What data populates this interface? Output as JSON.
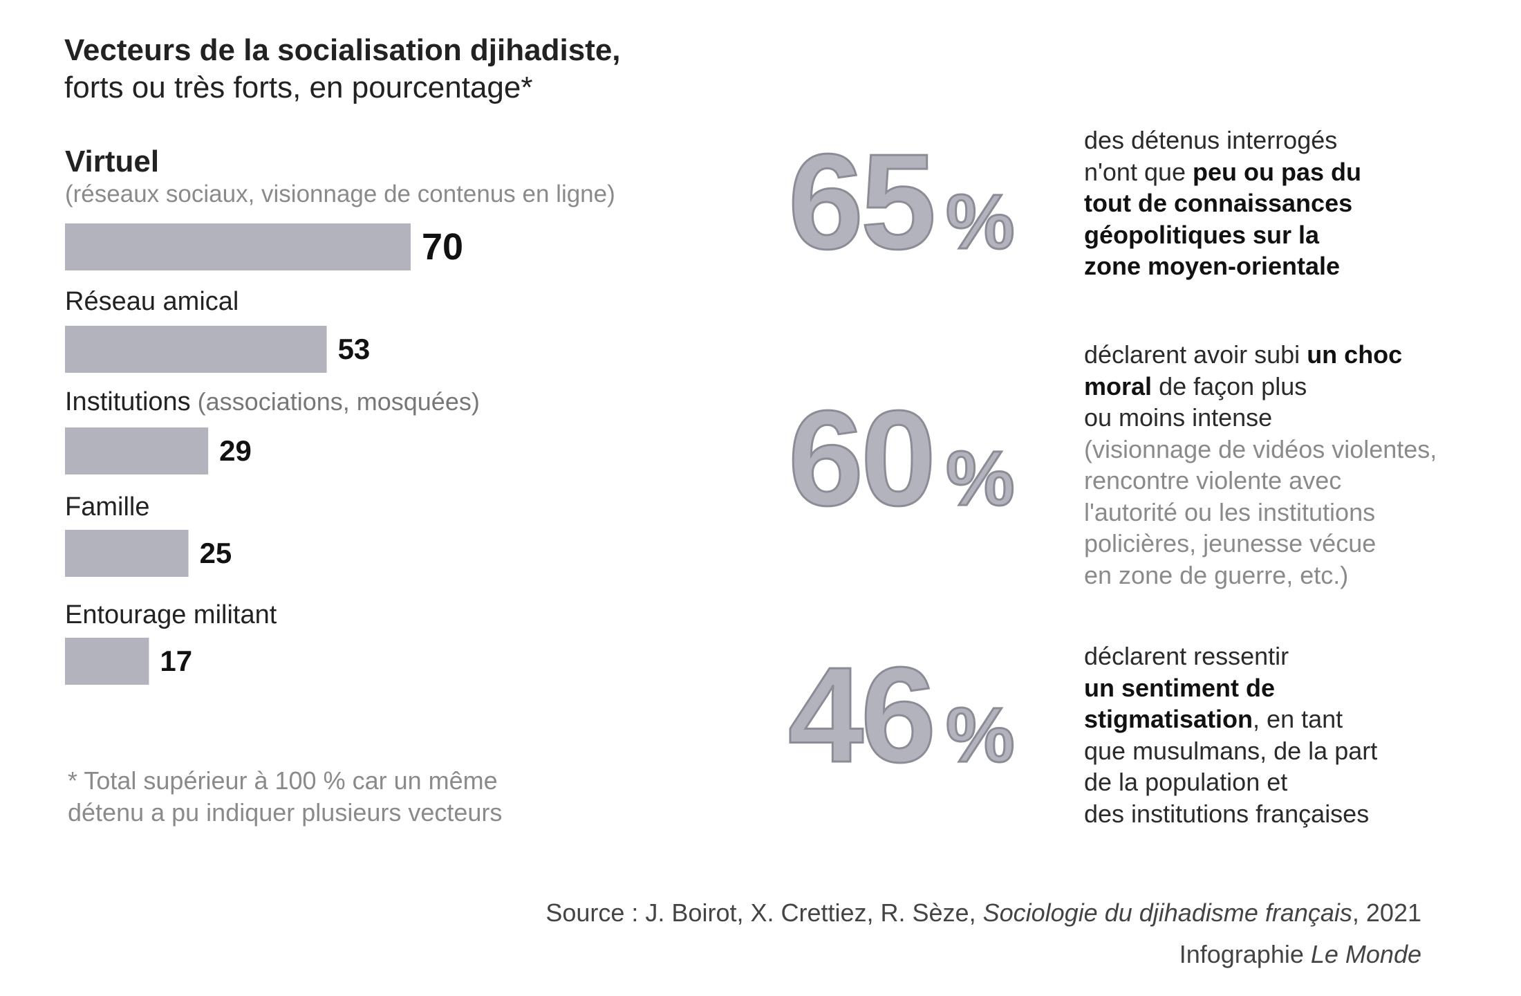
{
  "title": {
    "line1": "Vecteurs de la socialisation djihadiste,",
    "line2": "forts ou très forts, en pourcentage*"
  },
  "chart_data": {
    "type": "bar",
    "orientation": "horizontal",
    "categories": [
      "Virtuel",
      "Réseau amical",
      "Institutions",
      "Famille",
      "Entourage militant"
    ],
    "category_notes": [
      "(réseaux sociaux, visionnage de contenus en ligne)",
      "",
      "(associations, mosquées)",
      "",
      ""
    ],
    "values": [
      70,
      53,
      29,
      25,
      17
    ],
    "bar_color": "#b3b3bd",
    "xlim": [
      0,
      70
    ]
  },
  "footnote": {
    "line1": "* Total supérieur à 100 % car un même",
    "line2": "détenu a pu indiquer plusieurs vecteurs"
  },
  "stats": [
    {
      "number": "65",
      "unit": "%",
      "text_1": "des détenus interrogés",
      "text_2": "n'ont que",
      "bold_1": "peu ou pas du",
      "bold_2": "tout de connaissances",
      "bold_3": "géopolitiques sur la",
      "bold_4": "zone moyen-orientale"
    },
    {
      "number": "60",
      "unit": "%",
      "text_1": "déclarent avoir subi",
      "bold_1": "un choc",
      "bold_2": "moral",
      "text_2": "de façon plus",
      "text_3": "ou moins intense",
      "note_1": "(visionnage de vidéos violentes,",
      "note_2": "rencontre violente avec",
      "note_3": "l'autorité ou les institutions",
      "note_4": "policières, jeunesse vécue",
      "note_5": "en zone de guerre, etc.)"
    },
    {
      "number": "46",
      "unit": "%",
      "text_1": "déclarent ressentir",
      "bold_1": "un sentiment de",
      "bold_2": "stigmatisation",
      "text_2": ", en tant",
      "text_3": "que musulmans, de la part",
      "text_4": "de la population et",
      "text_5": "des institutions françaises"
    }
  ],
  "source": {
    "prefix": "Source : J. Boirot, X. Crettiez, R. Sèze,",
    "book": "Sociologie du djihadisme français",
    "year": ", 2021",
    "credit_prefix": "Infographie",
    "credit_name": "Le Monde"
  }
}
